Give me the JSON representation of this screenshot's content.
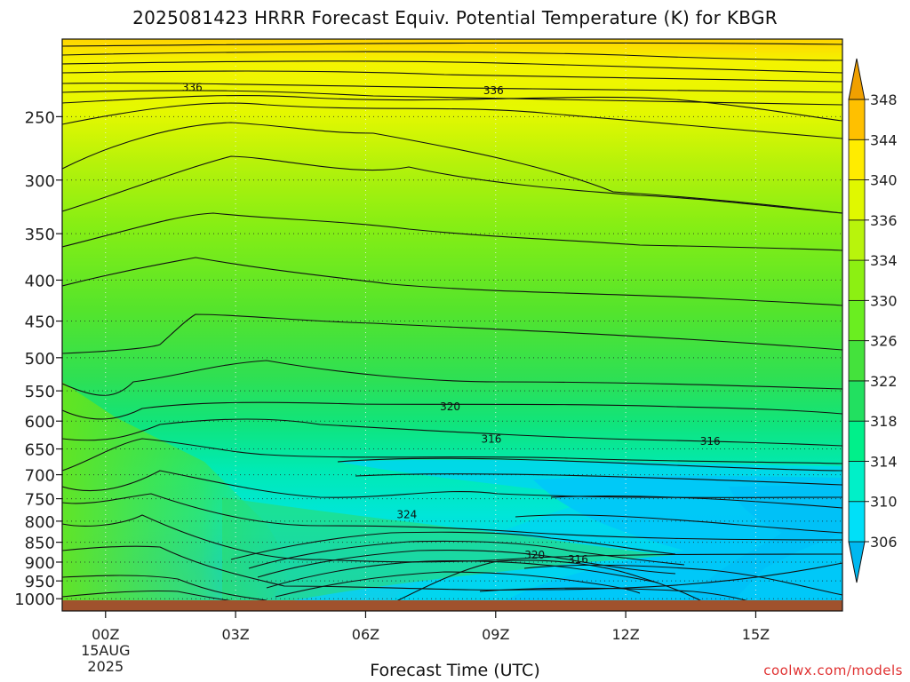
{
  "chart_data": {
    "type": "contour",
    "title": "2025081423 HRRR Forecast Equiv. Potential Temperature (K) for KBGR",
    "xlabel": "Forecast Time (UTC)",
    "ylabel": "",
    "credit": "coolwx.com/models",
    "x_ticks": [
      {
        "label": "00Z",
        "hour": 0,
        "sub": [
          "15AUG",
          "2025"
        ]
      },
      {
        "label": "03Z",
        "hour": 3,
        "sub": []
      },
      {
        "label": "06Z",
        "hour": 6,
        "sub": []
      },
      {
        "label": "09Z",
        "hour": 9,
        "sub": []
      },
      {
        "label": "12Z",
        "hour": 12,
        "sub": []
      },
      {
        "label": "15Z",
        "hour": 15,
        "sub": []
      }
    ],
    "xlim": [
      -1,
      17
    ],
    "y_ticks": [
      250,
      300,
      350,
      400,
      450,
      500,
      550,
      600,
      650,
      700,
      750,
      800,
      850,
      900,
      950,
      1000
    ],
    "ylim": [
      1020,
      200
    ],
    "ylog": true,
    "colorbar": {
      "levels": [
        306,
        310,
        314,
        318,
        322,
        326,
        330,
        334,
        336,
        340,
        344,
        348
      ],
      "colors": [
        "#00b8f0",
        "#00e0f8",
        "#00f0c8",
        "#00f08a",
        "#22e060",
        "#44e23c",
        "#6aee20",
        "#8cf012",
        "#b8f40c",
        "#e0f800",
        "#ffec00",
        "#ffc000",
        "#f0a000"
      ]
    },
    "contour_labels": [
      {
        "text": "336",
        "hour": 2.0,
        "p": 230
      },
      {
        "text": "336",
        "hour": 8.95,
        "p": 232
      },
      {
        "text": "320",
        "hour": 7.95,
        "p": 576
      },
      {
        "text": "316",
        "hour": 8.9,
        "p": 632
      },
      {
        "text": "316",
        "hour": 13.95,
        "p": 636
      },
      {
        "text": "324",
        "hour": 6.95,
        "p": 785
      },
      {
        "text": "320",
        "hour": 9.9,
        "p": 882
      },
      {
        "text": "316",
        "hour": 10.9,
        "p": 893
      }
    ]
  }
}
